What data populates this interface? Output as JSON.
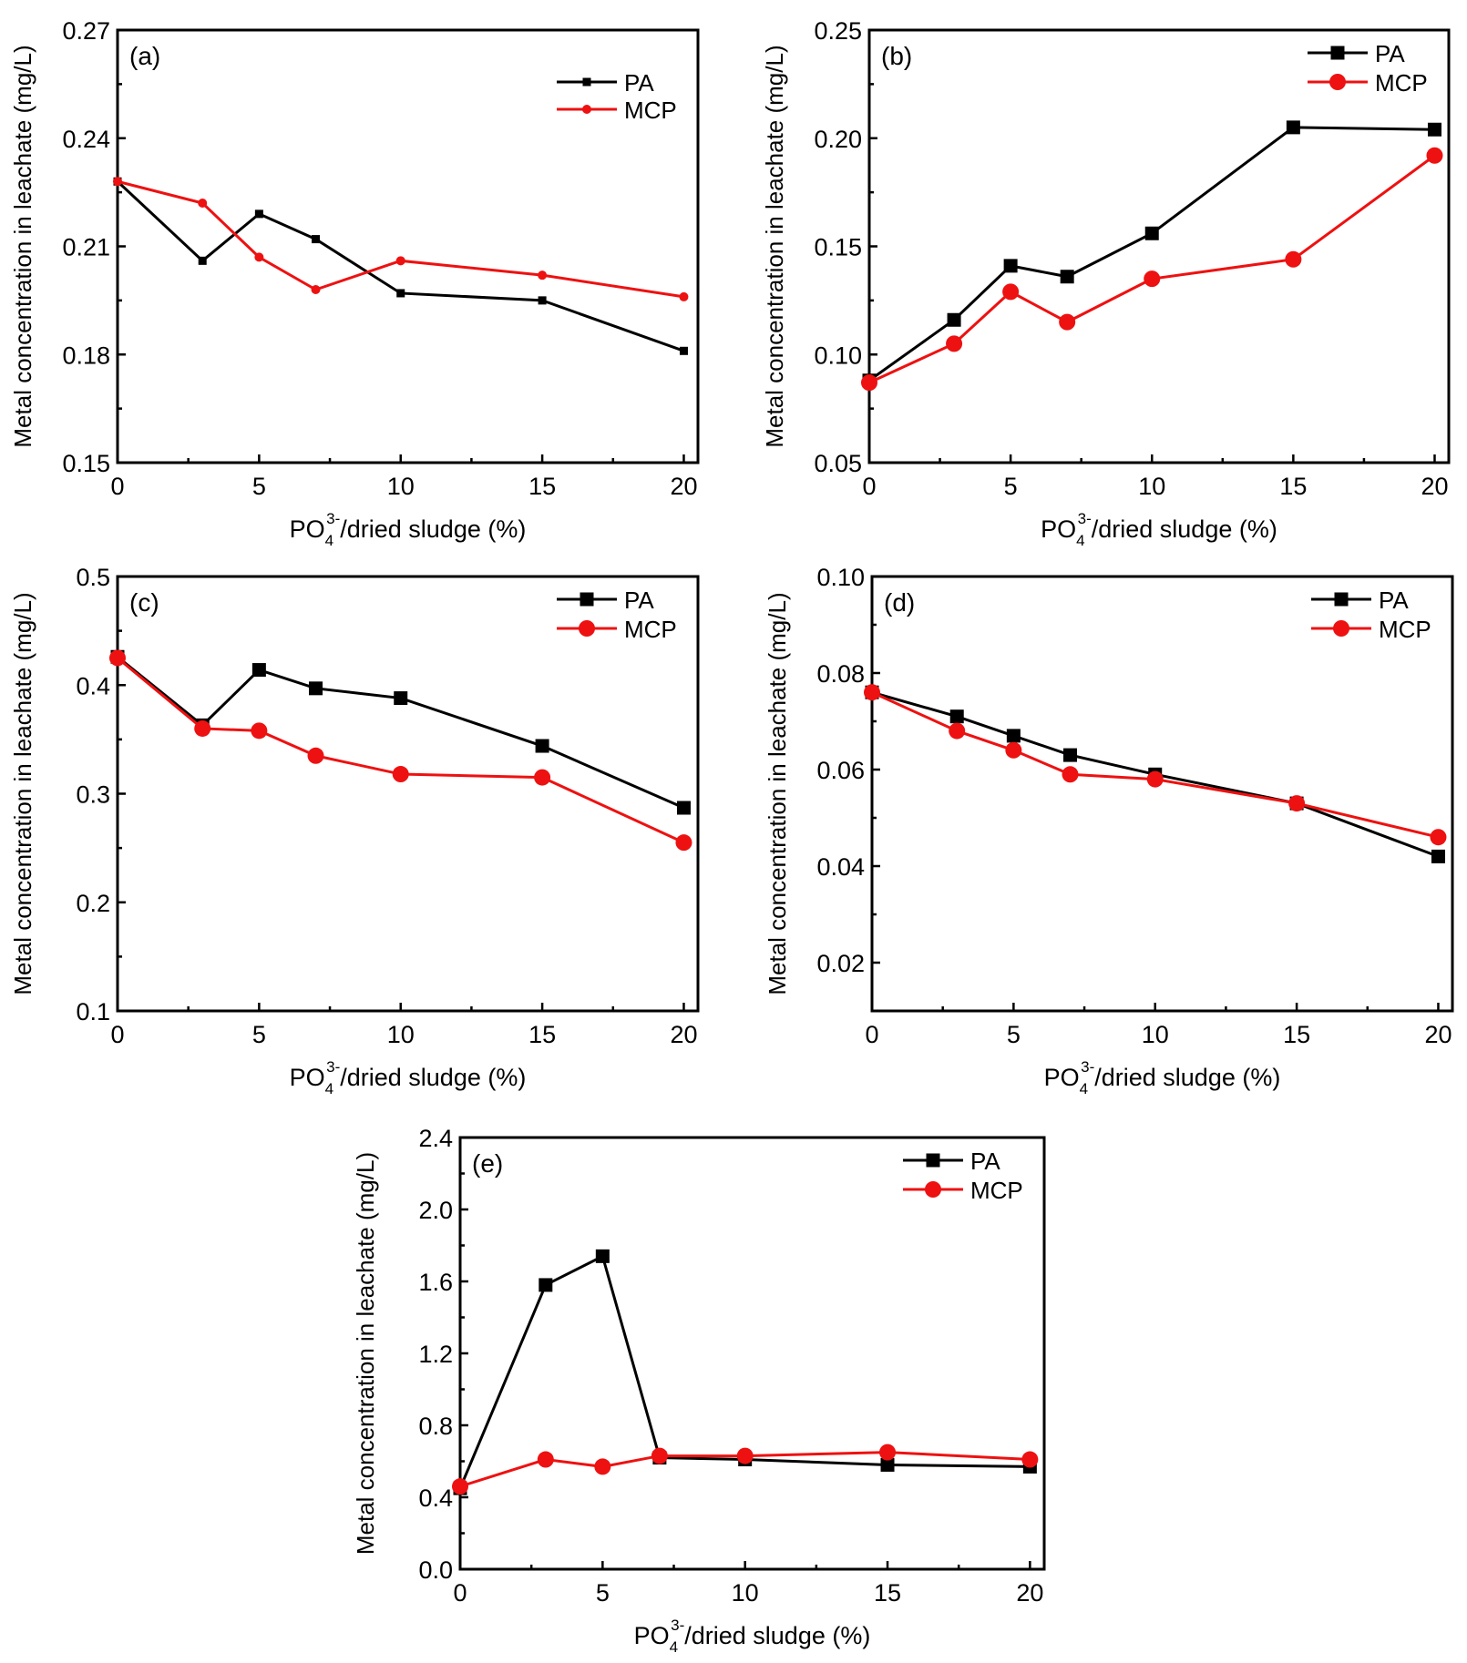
{
  "figure": {
    "shared_ylabel": "Metal concentration in leachate (mg/L)",
    "shared_xlabel": {
      "base": "PO",
      "sub": "4",
      "sup": "3-",
      "rest": "/dried sludge (%)"
    }
  },
  "chart_data": [
    {
      "type": "line",
      "panel_label": "(a)",
      "title": "",
      "xlabel": "PO4^3-/dried sludge (%)",
      "ylabel": "Metal concentration in leachate (mg/L)",
      "x": [
        0,
        3,
        5,
        7,
        10,
        15,
        20
      ],
      "xlim": [
        0,
        20.5
      ],
      "xticks": [
        0,
        5,
        10,
        15,
        20
      ],
      "xtick_labels": [
        "0",
        "5",
        "10",
        "15",
        "20"
      ],
      "ylim": [
        0.15,
        0.27
      ],
      "yticks": [
        0.15,
        0.18,
        0.21,
        0.24,
        0.27
      ],
      "ytick_labels": [
        "0.15",
        "0.18",
        "0.21",
        "0.24",
        "0.27"
      ],
      "grid": false,
      "legend": "top-right",
      "marker_size": "small",
      "series": [
        {
          "name": "PA",
          "color": "#000000",
          "marker": "square",
          "values": [
            0.228,
            0.206,
            0.219,
            0.212,
            0.197,
            0.195,
            0.181
          ]
        },
        {
          "name": "MCP",
          "color": "#ee1111",
          "marker": "circle",
          "values": [
            0.228,
            0.222,
            0.207,
            0.198,
            0.206,
            0.202,
            0.196
          ]
        }
      ]
    },
    {
      "type": "line",
      "panel_label": "(b)",
      "title": "",
      "xlabel": "PO4^3-/dried sludge (%)",
      "ylabel": "Metal concentration in leachate (mg/L)",
      "x": [
        0,
        3,
        5,
        7,
        10,
        15,
        20
      ],
      "xlim": [
        0,
        20.5
      ],
      "xticks": [
        0,
        5,
        10,
        15,
        20
      ],
      "xtick_labels": [
        "0",
        "5",
        "10",
        "15",
        "20"
      ],
      "ylim": [
        0.05,
        0.25
      ],
      "yticks": [
        0.05,
        0.1,
        0.15,
        0.2,
        0.25
      ],
      "ytick_labels": [
        "0.05",
        "0.10",
        "0.15",
        "0.20",
        "0.25"
      ],
      "grid": false,
      "legend": "top-right",
      "marker_size": "large",
      "series": [
        {
          "name": "PA",
          "color": "#000000",
          "marker": "square",
          "values": [
            0.088,
            0.116,
            0.141,
            0.136,
            0.156,
            0.205,
            0.204
          ]
        },
        {
          "name": "MCP",
          "color": "#ee1111",
          "marker": "circle",
          "values": [
            0.087,
            0.105,
            0.129,
            0.115,
            0.135,
            0.144,
            0.192
          ]
        }
      ]
    },
    {
      "type": "line",
      "panel_label": "(c)",
      "title": "",
      "xlabel": "PO4^3-/dried sludge (%)",
      "ylabel": "Metal concentration in leachate (mg/L)",
      "x": [
        0,
        3,
        5,
        7,
        10,
        15,
        20
      ],
      "xlim": [
        0,
        20.5
      ],
      "xticks": [
        0,
        5,
        10,
        15,
        20
      ],
      "xtick_labels": [
        "0",
        "5",
        "10",
        "15",
        "20"
      ],
      "ylim": [
        0.1,
        0.5
      ],
      "yticks": [
        0.1,
        0.2,
        0.3,
        0.4,
        0.5
      ],
      "ytick_labels": [
        "0.1",
        "0.2",
        "0.3",
        "0.4",
        "0.5"
      ],
      "grid": false,
      "legend": "top-right",
      "marker_size": "large",
      "series": [
        {
          "name": "PA",
          "color": "#000000",
          "marker": "square",
          "values": [
            0.426,
            0.363,
            0.414,
            0.397,
            0.388,
            0.344,
            0.287
          ]
        },
        {
          "name": "MCP",
          "color": "#ee1111",
          "marker": "circle",
          "values": [
            0.425,
            0.36,
            0.358,
            0.335,
            0.318,
            0.315,
            0.255
          ]
        }
      ]
    },
    {
      "type": "line",
      "panel_label": "(d)",
      "title": "",
      "xlabel": "PO4^3-/dried sludge (%)",
      "ylabel": "Metal concentration in leachate (mg/L)",
      "x": [
        0,
        3,
        5,
        7,
        10,
        15,
        20
      ],
      "xlim": [
        0,
        20.5
      ],
      "xticks": [
        0,
        5,
        10,
        15,
        20
      ],
      "xtick_labels": [
        "0",
        "5",
        "10",
        "15",
        "20"
      ],
      "ylim": [
        0.01,
        0.1
      ],
      "yticks": [
        0.02,
        0.04,
        0.06,
        0.08,
        0.1
      ],
      "ytick_labels": [
        "0.02",
        "0.04",
        "0.06",
        "0.08",
        "0.10"
      ],
      "grid": false,
      "legend": "top-right",
      "marker_size": "large",
      "series": [
        {
          "name": "PA",
          "color": "#000000",
          "marker": "square",
          "values": [
            0.076,
            0.071,
            0.067,
            0.063,
            0.059,
            0.053,
            0.042
          ]
        },
        {
          "name": "MCP",
          "color": "#ee1111",
          "marker": "circle",
          "values": [
            0.076,
            0.068,
            0.064,
            0.059,
            0.058,
            0.053,
            0.046
          ]
        }
      ]
    },
    {
      "type": "line",
      "panel_label": "(e)",
      "title": "",
      "xlabel": "PO4^3-/dried sludge (%)",
      "ylabel": "Metal concentration in leachate (mg/L)",
      "x": [
        0,
        3,
        5,
        7,
        10,
        15,
        20
      ],
      "xlim": [
        0,
        20.5
      ],
      "xticks": [
        0,
        5,
        10,
        15,
        20
      ],
      "xtick_labels": [
        "0",
        "5",
        "10",
        "15",
        "20"
      ],
      "ylim": [
        0.0,
        2.4
      ],
      "yticks": [
        0.0,
        0.4,
        0.8,
        1.2,
        1.6,
        2.0,
        2.4
      ],
      "ytick_labels": [
        "0.0",
        "0.4",
        "0.8",
        "1.2",
        "1.6",
        "2.0",
        "2.4"
      ],
      "grid": false,
      "legend": "top-right",
      "marker_size": "large",
      "series": [
        {
          "name": "PA",
          "color": "#000000",
          "marker": "square",
          "values": [
            0.45,
            1.58,
            1.74,
            0.62,
            0.61,
            0.58,
            0.57
          ]
        },
        {
          "name": "MCP",
          "color": "#ee1111",
          "marker": "circle",
          "values": [
            0.46,
            0.61,
            0.57,
            0.63,
            0.63,
            0.65,
            0.61
          ]
        }
      ]
    }
  ]
}
